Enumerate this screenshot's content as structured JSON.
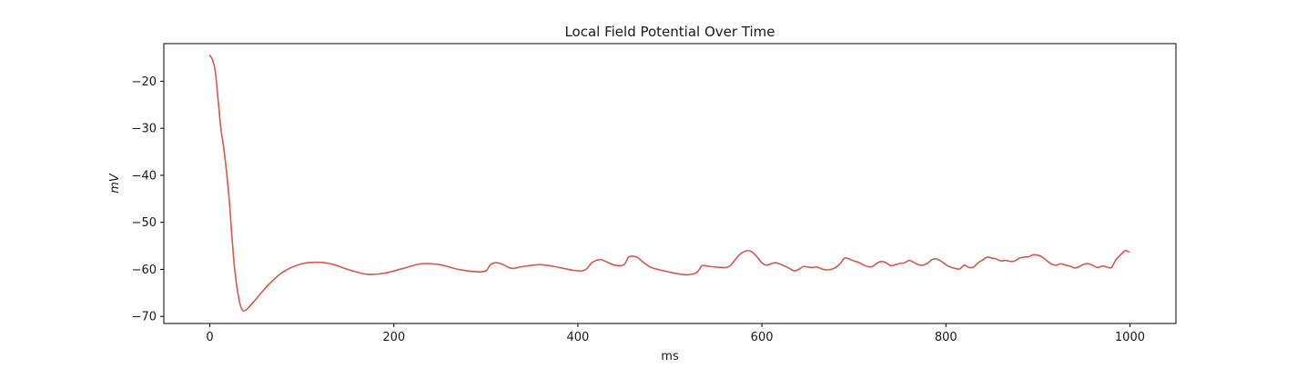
{
  "chart_data": {
    "type": "line",
    "title": "Local Field Potential Over Time",
    "xlabel": "ms",
    "ylabel": "mV",
    "xlim": [
      -50,
      1050
    ],
    "ylim": [
      -71.5,
      -12.0
    ],
    "xticks": [
      0,
      200,
      400,
      600,
      800,
      1000
    ],
    "yticks": [
      -70,
      -60,
      -50,
      -40,
      -30,
      -20
    ],
    "xtick_labels": [
      "0",
      "200",
      "400",
      "600",
      "800",
      "1000"
    ],
    "ytick_labels": [
      "−70",
      "−60",
      "−50",
      "−40",
      "−30",
      "−20"
    ],
    "grid": false,
    "color": "#d9574b",
    "series": [
      {
        "x": [
          0,
          3,
          6,
          9,
          12,
          15,
          18,
          21,
          24,
          27,
          30,
          33,
          36,
          40,
          44,
          48,
          55,
          65,
          80,
          100,
          120,
          135,
          150,
          170,
          190,
          210,
          230,
          250,
          270,
          290,
          300,
          305,
          310,
          315,
          320,
          325,
          330,
          340,
          360,
          380,
          395,
          405,
          410,
          415,
          420,
          425,
          430,
          440,
          450,
          455,
          460,
          465,
          470,
          480,
          500,
          515,
          525,
          530,
          535,
          540,
          550,
          560,
          565,
          570,
          575,
          580,
          585,
          590,
          595,
          600,
          605,
          610,
          615,
          620,
          625,
          630,
          635,
          640,
          645,
          650,
          655,
          660,
          665,
          670,
          675,
          680,
          685,
          690,
          695,
          700,
          705,
          710,
          715,
          720,
          725,
          730,
          735,
          740,
          745,
          750,
          755,
          760,
          765,
          770,
          775,
          780,
          785,
          790,
          795,
          800,
          805,
          810,
          815,
          820,
          825,
          830,
          835,
          840,
          845,
          850,
          855,
          860,
          865,
          870,
          875,
          880,
          885,
          890,
          895,
          900,
          905,
          910,
          915,
          920,
          925,
          930,
          935,
          940,
          945,
          950,
          955,
          960,
          965,
          970,
          975,
          980,
          985,
          990,
          995,
          999
        ],
        "y": [
          -14.5,
          -15.5,
          -18.0,
          -24.0,
          -30.0,
          -34.0,
          -39.0,
          -45.0,
          -53.0,
          -60.0,
          -64.5,
          -67.5,
          -68.8,
          -68.5,
          -67.7,
          -66.8,
          -65.2,
          -63.0,
          -60.5,
          -58.8,
          -58.5,
          -59.0,
          -60.0,
          -61.0,
          -60.8,
          -59.8,
          -58.8,
          -59.0,
          -60.0,
          -60.5,
          -60.3,
          -59.0,
          -58.6,
          -58.7,
          -59.1,
          -59.6,
          -59.8,
          -59.4,
          -59.0,
          -59.6,
          -60.2,
          -60.3,
          -59.8,
          -58.6,
          -58.1,
          -57.9,
          -58.3,
          -59.1,
          -59.0,
          -57.4,
          -57.2,
          -57.5,
          -58.3,
          -59.6,
          -60.6,
          -61.1,
          -61.0,
          -60.5,
          -59.2,
          -59.3,
          -59.5,
          -59.6,
          -59.3,
          -58.2,
          -57.0,
          -56.3,
          -56.0,
          -56.4,
          -57.4,
          -58.6,
          -59.1,
          -58.8,
          -58.6,
          -58.9,
          -59.3,
          -59.8,
          -60.3,
          -60.0,
          -59.4,
          -59.5,
          -59.6,
          -59.5,
          -59.9,
          -60.1,
          -60.0,
          -59.6,
          -58.8,
          -57.6,
          -57.8,
          -58.2,
          -58.5,
          -59.0,
          -59.4,
          -59.4,
          -58.7,
          -58.3,
          -58.6,
          -59.2,
          -59.0,
          -58.7,
          -58.6,
          -58.1,
          -58.5,
          -59.0,
          -59.1,
          -58.7,
          -57.9,
          -57.8,
          -58.3,
          -59.0,
          -59.5,
          -59.8,
          -59.9,
          -59.1,
          -59.6,
          -59.5,
          -58.6,
          -58.0,
          -57.4,
          -57.6,
          -57.8,
          -58.2,
          -58.1,
          -58.3,
          -58.2,
          -57.6,
          -57.4,
          -57.3,
          -56.9,
          -57.0,
          -57.4,
          -58.2,
          -58.9,
          -59.1,
          -58.8,
          -59.1,
          -59.3,
          -59.7,
          -59.4,
          -58.9,
          -58.8,
          -59.2,
          -59.6,
          -59.3,
          -59.5,
          -59.6,
          -57.9,
          -56.9,
          -56.0,
          -56.3
        ]
      }
    ]
  }
}
